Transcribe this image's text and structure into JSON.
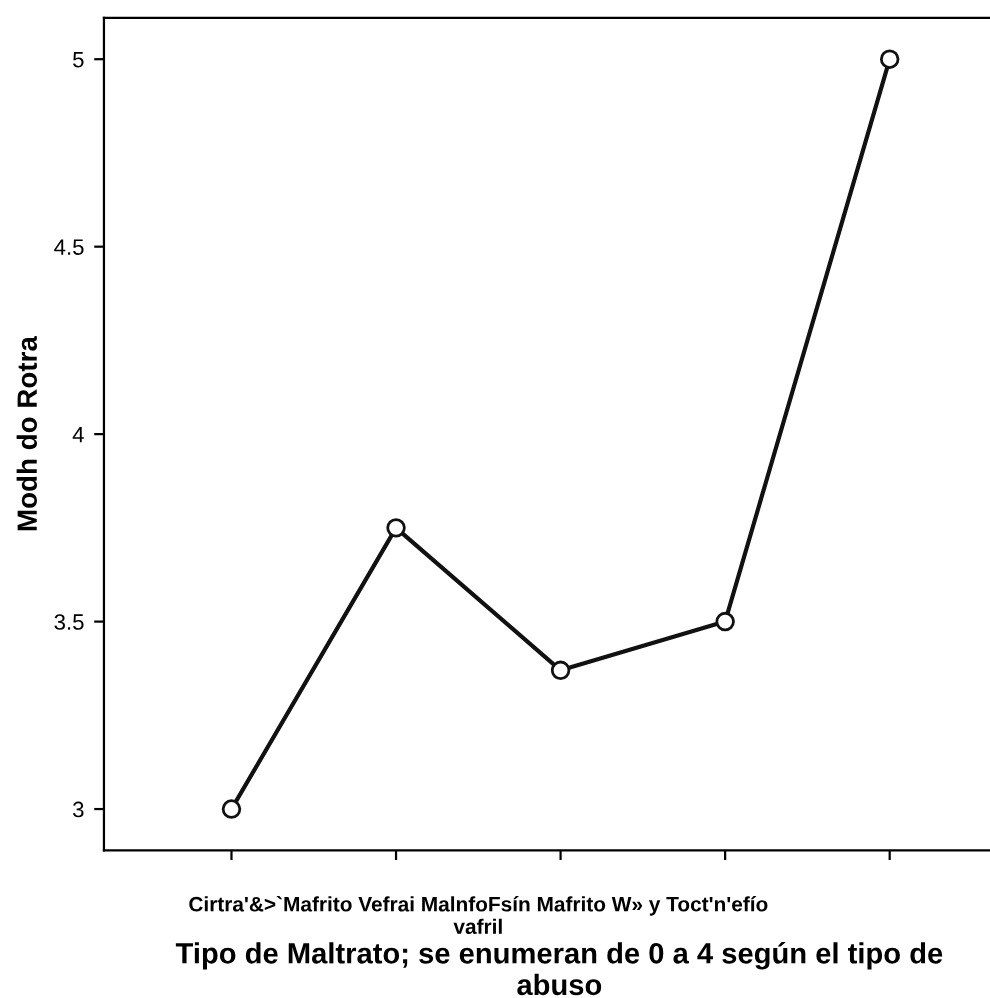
{
  "chart_data": {
    "type": "line",
    "xlabel": "Tipo de Maltrato; se enumeran de 0 a 4 según el tipo de abuso",
    "ylabel": "Modh do Rotra",
    "categories": [
      null,
      null,
      null,
      null,
      null
    ],
    "series": [
      {
        "color": "#111111",
        "values": [
          3.0,
          3.75,
          3.37,
          3.5,
          5.0
        ]
      }
    ],
    "ylim": [
      2.89,
      5.11
    ],
    "yticks": [
      3,
      3.5,
      4,
      4.5,
      5
    ],
    "marker": "circle",
    "line_style": "solid",
    "grid": false,
    "legend": false,
    "annotations": [
      "Cirtra'&>`Mafrito Vefrai MalnfoFsín Mafrito W» y Toct'n'efío\nvafril"
    ]
  }
}
